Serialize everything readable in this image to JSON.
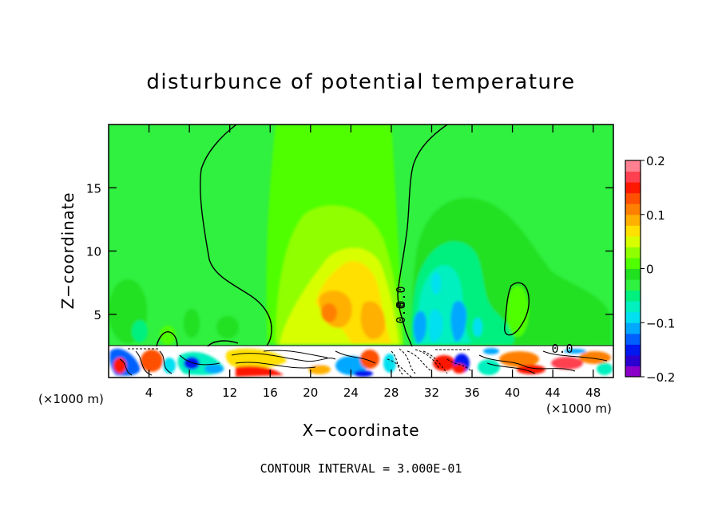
{
  "chart_data": {
    "type": "heatmap",
    "title": "disturbunce of potential temperature",
    "xlabel": "X−coordinate",
    "ylabel": "Z−coordinate",
    "x_unit": "(×1000 m)",
    "y_unit": "(×1000 m)",
    "xlim": [
      0,
      50
    ],
    "ylim": [
      0,
      20
    ],
    "xticks": [
      4,
      8,
      12,
      16,
      20,
      24,
      28,
      32,
      36,
      40,
      44,
      48
    ],
    "yticks": [
      5,
      10,
      15
    ],
    "colorbar": {
      "min": -0.2,
      "max": 0.2,
      "tick_labels": [
        "0.2",
        "0.1",
        "0",
        "−0.1",
        "−0.2"
      ],
      "tick_values": [
        0.2,
        0.1,
        0,
        -0.1,
        -0.2
      ],
      "colors": [
        "#8a00c8",
        "#2a00d0",
        "#0018f0",
        "#0060ff",
        "#00a8ff",
        "#00e0f0",
        "#00f0c0",
        "#00f080",
        "#30f040",
        "#20e020",
        "#50ff00",
        "#90ff00",
        "#d8ff00",
        "#ffe000",
        "#ffb000",
        "#ff8000",
        "#ff5000",
        "#ff1800",
        "#ff4050",
        "#ff8090"
      ]
    },
    "contour_label": "0.0",
    "footer": "CONTOUR INTERVAL = 3.000E-01"
  }
}
